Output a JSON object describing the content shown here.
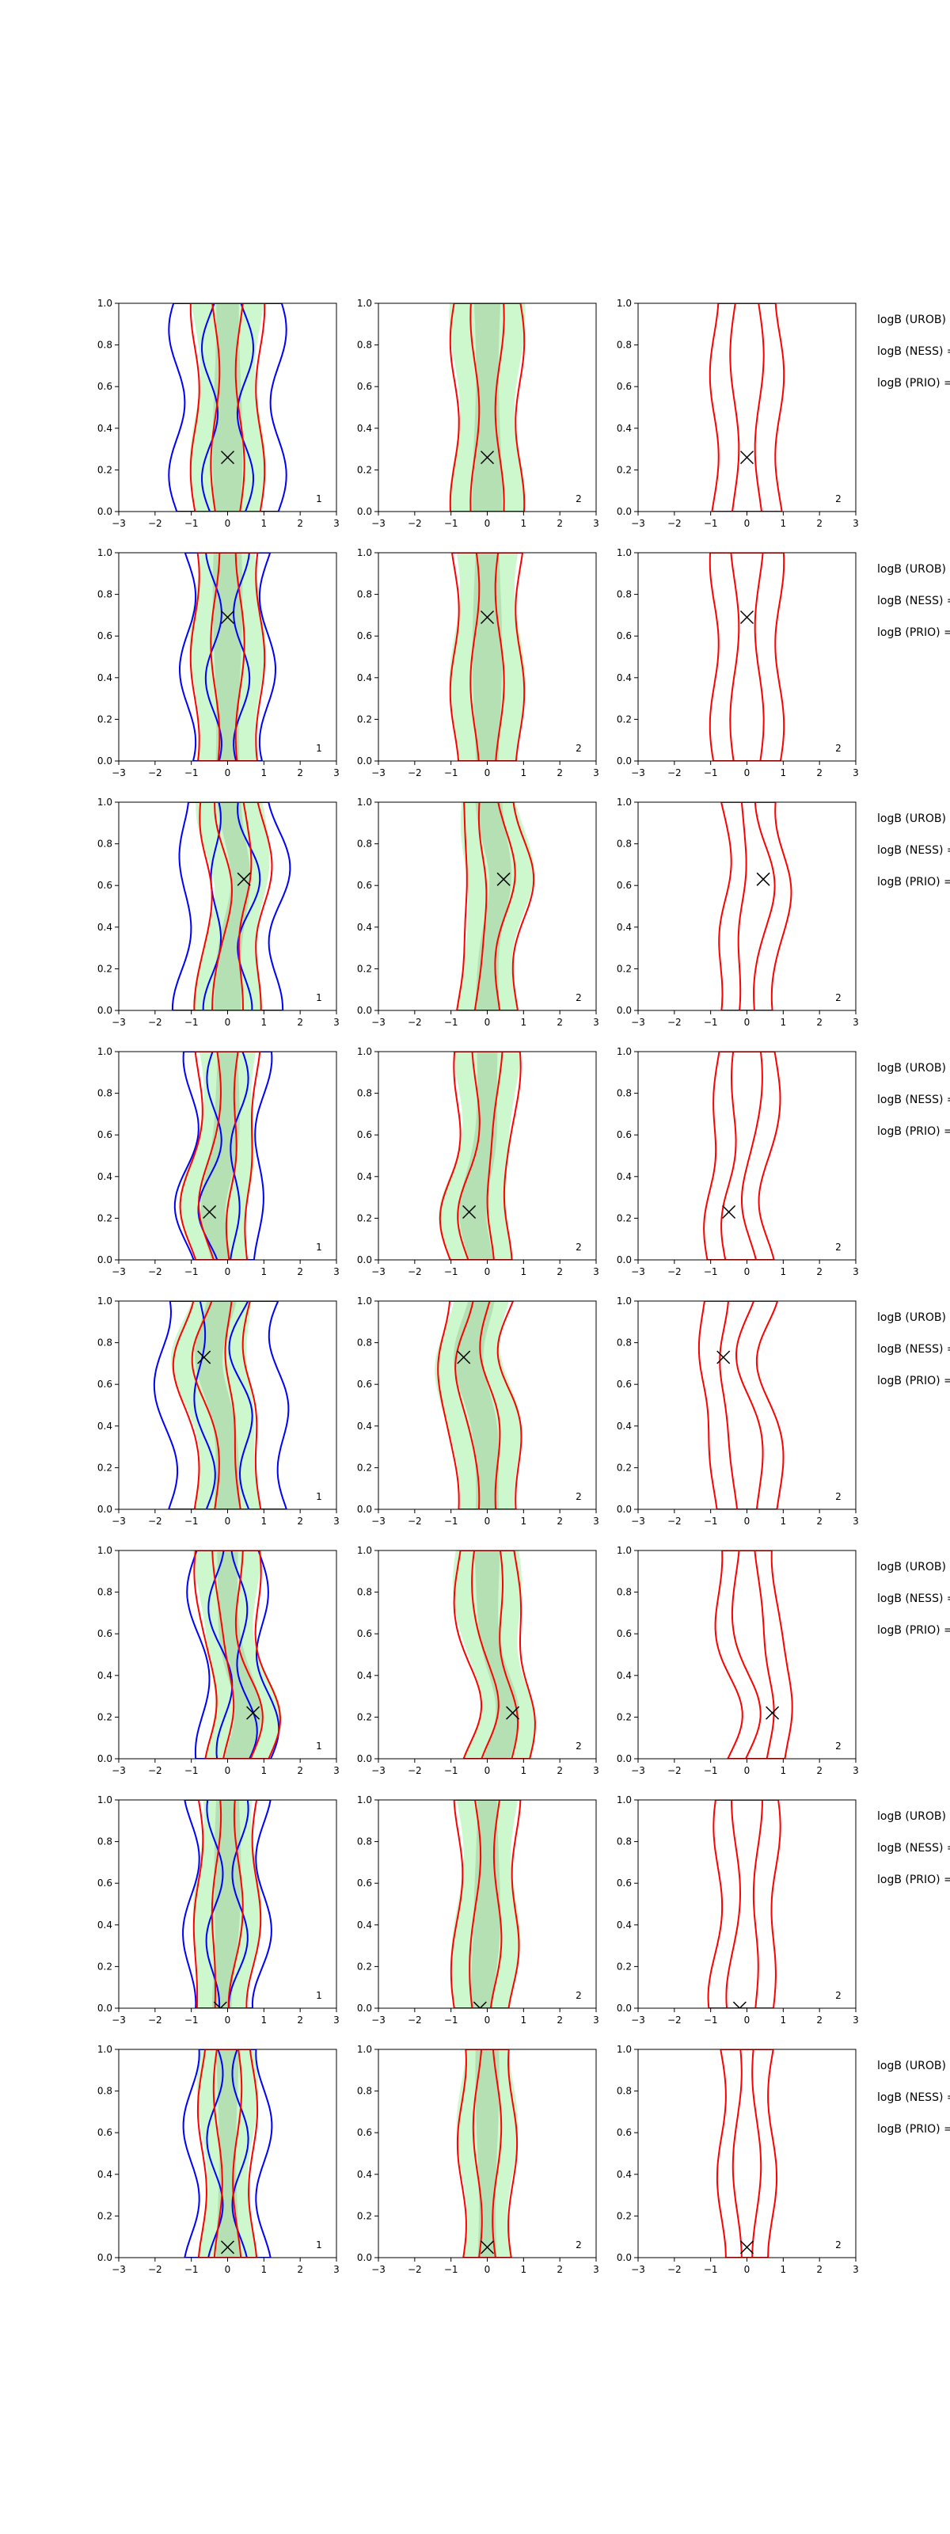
{
  "figure": {
    "legend_labels": [
      "logB (UROB) =",
      "logB (NESS) =",
      "logB (PRIO) ="
    ]
  },
  "colors": {
    "urob": "#0000ff",
    "ness": "#ff0000",
    "fill": "#90ee90",
    "marker": "#000000"
  },
  "chart_data": {
    "type": "contour",
    "layout": "8 rows x 3 columns of panels",
    "xlim": [
      -3,
      3
    ],
    "ylim": [
      0,
      1
    ],
    "xticks": [
      "−3",
      "−2",
      "−1",
      "0",
      "1",
      "2",
      "3"
    ],
    "yticks": [
      "0.0",
      "0.2",
      "0.4",
      "0.6",
      "0.8",
      "1.0"
    ],
    "panel_labels": [
      "1",
      "2",
      "2"
    ],
    "rows": [
      {
        "marker": [
          0.0,
          0.26
        ],
        "ness_spread": 0.9,
        "urob_spread": 1.4
      },
      {
        "marker": [
          0.0,
          0.69
        ],
        "ness_spread": 0.9,
        "urob_spread": 1.1
      },
      {
        "marker": [
          0.45,
          0.63
        ],
        "ness_spread": 0.8,
        "urob_spread": 1.3
      },
      {
        "marker": [
          -0.5,
          0.23
        ],
        "ness_spread": 0.8,
        "urob_spread": 1.0
      },
      {
        "marker": [
          -0.65,
          0.73
        ],
        "ness_spread": 0.9,
        "urob_spread": 1.6
      },
      {
        "marker": [
          0.7,
          0.22
        ],
        "ness_spread": 0.8,
        "urob_spread": 0.9
      },
      {
        "marker": [
          -0.2,
          0.0
        ],
        "ness_spread": 0.8,
        "urob_spread": 1.0
      },
      {
        "marker": [
          0.0,
          0.05
        ],
        "ness_spread": 0.7,
        "urob_spread": 1.0
      }
    ]
  }
}
